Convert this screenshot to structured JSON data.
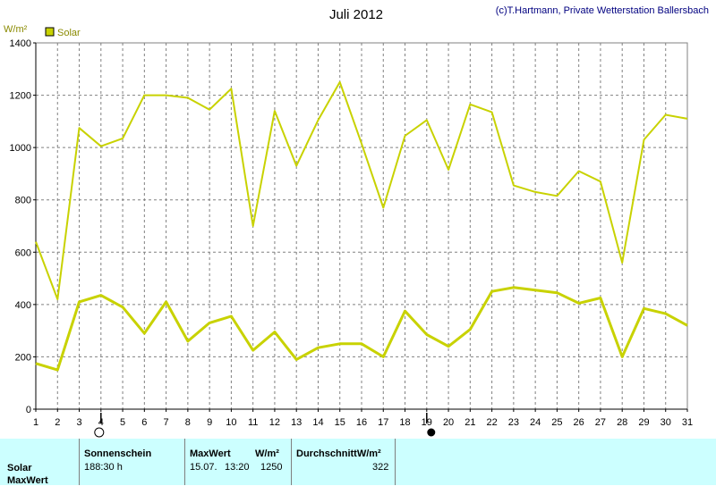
{
  "chart_data": {
    "type": "line",
    "title": "Juli 2012",
    "credit": "(c)T.Hartmann, Private Wetterstation Ballersbach",
    "ylabel": "W/m²",
    "ylim": [
      0,
      1400
    ],
    "yticks": [
      0,
      200,
      400,
      600,
      800,
      1000,
      1200,
      1400
    ],
    "x": [
      1,
      2,
      3,
      4,
      5,
      6,
      7,
      8,
      9,
      10,
      11,
      12,
      13,
      14,
      15,
      16,
      17,
      18,
      19,
      20,
      21,
      22,
      23,
      24,
      25,
      26,
      27,
      28,
      29,
      30,
      31
    ],
    "xlim": [
      1,
      31
    ],
    "grid": true,
    "legend": [
      {
        "name": "Solar",
        "color": "#c8d200"
      }
    ],
    "series": [
      {
        "name": "Solar",
        "kind": "daily maximum",
        "color": "#c8d200",
        "values": [
          640,
          420,
          1075,
          1005,
          1035,
          1200,
          1200,
          1190,
          1145,
          1225,
          700,
          1140,
          930,
          1105,
          1250,
          1015,
          770,
          1045,
          1105,
          915,
          1165,
          1135,
          855,
          830,
          815,
          910,
          870,
          560,
          1030,
          1125,
          1110
        ]
      },
      {
        "name": "Solar",
        "kind": "daily average",
        "color": "#c8d200",
        "values": [
          175,
          150,
          410,
          435,
          390,
          290,
          410,
          260,
          330,
          355,
          225,
          295,
          190,
          235,
          250,
          250,
          200,
          375,
          285,
          240,
          305,
          450,
          465,
          455,
          445,
          405,
          425,
          200,
          385,
          365,
          320
        ]
      }
    ],
    "moon_markers": [
      {
        "day": 4,
        "icon": "full-moon-icon"
      },
      {
        "day": 19,
        "icon": "new-moon-icon"
      }
    ]
  },
  "stats": {
    "headers": {
      "sunshine": "Sonnenschein",
      "max": "MaxWert",
      "max_unit": "W/m²",
      "avg": "DurchschnittW/m²"
    },
    "row_labels": [
      "Solar",
      "MaxWert"
    ],
    "sunshine_value": "188:30 h",
    "max_date": "15.07.",
    "max_time": "13:20",
    "max_value": "1250",
    "avg_value": "322"
  }
}
